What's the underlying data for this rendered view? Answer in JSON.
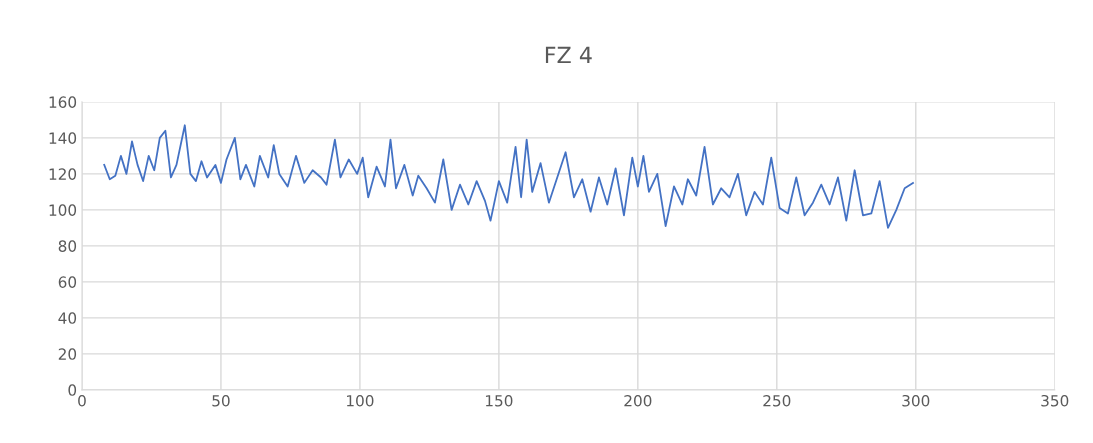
{
  "chart_data": {
    "type": "line",
    "title": "FZ 4",
    "xlim": [
      0,
      350
    ],
    "xticks": [
      0,
      50,
      100,
      150,
      200,
      250,
      300,
      350
    ],
    "ylim": [
      0,
      160
    ],
    "yticks": [
      0,
      20,
      40,
      60,
      80,
      100,
      120,
      140,
      160
    ],
    "grid": true,
    "legend": false,
    "marker": "none",
    "line_style": "solid",
    "series": [
      {
        "color": "#4472c4",
        "x": [
          8,
          10,
          12,
          14,
          16,
          18,
          20,
          22,
          24,
          26,
          28,
          30,
          32,
          34,
          37,
          39,
          41,
          43,
          45,
          48,
          50,
          52,
          55,
          57,
          59,
          62,
          64,
          67,
          69,
          71,
          74,
          77,
          80,
          83,
          86,
          88,
          91,
          93,
          96,
          99,
          101,
          103,
          106,
          109,
          111,
          113,
          116,
          119,
          121,
          124,
          127,
          130,
          133,
          136,
          139,
          142,
          145,
          147,
          150,
          153,
          156,
          158,
          160,
          162,
          165,
          168,
          171,
          174,
          177,
          180,
          183,
          186,
          189,
          192,
          195,
          198,
          200,
          202,
          204,
          207,
          210,
          213,
          216,
          218,
          221,
          224,
          227,
          230,
          233,
          236,
          239,
          242,
          245,
          248,
          251,
          254,
          257,
          260,
          263,
          266,
          269,
          272,
          275,
          278,
          281,
          284,
          287,
          290,
          293,
          296,
          299
        ],
        "values": [
          125,
          117,
          119,
          130,
          120,
          138,
          125,
          116,
          130,
          122,
          140,
          144,
          118,
          125,
          147,
          120,
          116,
          127,
          118,
          125,
          115,
          128,
          140,
          117,
          125,
          113,
          130,
          118,
          136,
          120,
          113,
          130,
          115,
          122,
          118,
          114,
          139,
          118,
          128,
          120,
          129,
          107,
          124,
          113,
          139,
          112,
          125,
          108,
          119,
          112,
          104,
          128,
          100,
          114,
          103,
          116,
          105,
          94,
          116,
          104,
          135,
          107,
          139,
          110,
          126,
          104,
          118,
          132,
          107,
          117,
          99,
          118,
          103,
          123,
          97,
          129,
          113,
          130,
          110,
          120,
          91,
          113,
          103,
          117,
          108,
          135,
          103,
          112,
          107,
          120,
          97,
          110,
          103,
          129,
          101,
          98,
          118,
          97,
          104,
          114,
          103,
          118,
          94,
          122,
          97,
          98,
          116,
          90,
          100,
          112,
          115
        ]
      }
    ]
  }
}
